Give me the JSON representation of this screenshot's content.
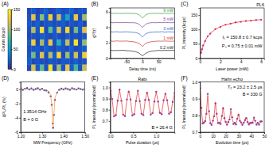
{
  "chart_data": [
    {
      "type": "heatmap",
      "title": "(A)",
      "cells": [
        [
          12,
          18,
          10,
          15,
          20,
          11,
          14,
          19,
          13,
          16,
          22,
          12,
          17,
          14
        ],
        [
          15,
          120,
          14,
          95,
          18,
          130,
          12,
          110,
          20,
          60,
          16,
          125,
          13,
          100
        ],
        [
          18,
          14,
          22,
          11,
          16,
          19,
          13,
          15,
          21,
          12,
          17,
          14,
          19,
          11
        ],
        [
          14,
          105,
          17,
          140,
          12,
          85,
          19,
          115,
          15,
          135,
          11,
          90,
          18,
          120
        ],
        [
          11,
          16,
          13,
          20,
          15,
          12,
          18,
          14,
          11,
          19,
          13,
          16,
          12,
          17
        ],
        [
          19,
          130,
          12,
          100,
          16,
          125,
          14,
          70,
          18,
          110,
          15,
          140,
          12,
          95
        ],
        [
          13,
          17,
          19,
          12,
          21,
          15,
          11,
          18,
          16,
          13,
          20,
          12,
          15,
          19
        ],
        [
          16,
          90,
          15,
          120,
          13,
          105,
          20,
          135,
          12,
          100,
          17,
          115,
          14,
          130
        ],
        [
          20,
          12,
          16,
          14,
          11,
          18,
          15,
          12,
          19,
          17,
          14,
          21,
          13,
          16
        ],
        [
          12,
          115,
          18,
          85,
          14,
          140,
          13,
          100,
          16,
          125,
          19,
          80,
          15,
          110
        ]
      ],
      "colorbar": {
        "label": "Counts (kcps)",
        "range": [
          0,
          150
        ],
        "ticks": [
          0,
          50,
          100,
          150
        ]
      }
    },
    {
      "type": "line",
      "title": "(B)",
      "xlabel": "Delay time (ns)",
      "ylabel": "g⁽²⁾(τ)",
      "x": [
        -100,
        -90,
        -80,
        -70,
        -60,
        -50,
        -40,
        -30,
        -20,
        -10,
        0,
        10,
        20,
        30,
        40,
        50,
        60,
        70,
        80,
        90,
        100
      ],
      "xlim": [
        -100,
        100
      ],
      "xticks": [
        -50,
        0,
        50
      ],
      "ylim": [
        0,
        6.5
      ],
      "yticks": [
        0,
        2,
        4,
        6
      ],
      "series": [
        {
          "name": "9 mW",
          "color": "#3a9a3a",
          "values": [
            5.81,
            5.79,
            5.82,
            5.78,
            5.8,
            5.81,
            5.79,
            5.8,
            5.76,
            5.62,
            5.2,
            5.6,
            5.77,
            5.79,
            5.81,
            5.8,
            5.78,
            5.82,
            5.79,
            5.81,
            5.8
          ]
        },
        {
          "name": "5 mW",
          "color": "#7a3fa0",
          "values": [
            4.61,
            4.58,
            4.62,
            4.59,
            4.6,
            4.62,
            4.58,
            4.59,
            4.55,
            4.38,
            3.98,
            4.4,
            4.54,
            4.6,
            4.58,
            4.61,
            4.59,
            4.62,
            4.6,
            4.58,
            4.61
          ]
        },
        {
          "name": "3 mW",
          "color": "#2a5fd0",
          "values": [
            3.41,
            3.39,
            3.42,
            3.38,
            3.4,
            3.41,
            3.39,
            3.36,
            3.31,
            3.15,
            2.75,
            3.16,
            3.32,
            3.37,
            3.4,
            3.39,
            3.42,
            3.38,
            3.41,
            3.4,
            3.39
          ]
        },
        {
          "name": "1 mW",
          "color": "#c83030",
          "values": [
            2.21,
            2.18,
            2.23,
            2.19,
            2.2,
            2.22,
            2.16,
            2.13,
            2.05,
            1.9,
            1.52,
            1.92,
            2.06,
            2.14,
            2.18,
            2.21,
            2.19,
            2.22,
            2.2,
            2.18,
            2.21
          ]
        },
        {
          "name": "0.2 mW",
          "color": "#222222",
          "values": [
            1.02,
            0.98,
            1.01,
            0.99,
            1.03,
            0.97,
            0.95,
            0.91,
            0.82,
            0.64,
            0.3,
            0.62,
            0.83,
            0.92,
            0.96,
            1.01,
            0.98,
            1.02,
            0.99,
            1.01,
            1.0
          ]
        }
      ]
    },
    {
      "type": "scatter",
      "title": "(C)",
      "xlabel": "Laser power (mW)",
      "ylabel": "PL Intensity (kcps)",
      "annotations": [
        "PL6",
        "Iₛ = 150.8 ± 0.7 kcps",
        "Pₛ = 0.75 ± 0.01 mW"
      ],
      "x": [
        0.1,
        0.2,
        0.3,
        0.5,
        0.75,
        1,
        1.5,
        2,
        2.5,
        3,
        3.5,
        4,
        4.5,
        5,
        5.5,
        6
      ],
      "xlim": [
        0,
        6.3
      ],
      "xticks": [
        0,
        2,
        4,
        6
      ],
      "ylim": [
        0,
        175
      ],
      "yticks": [
        0,
        50,
        100,
        150
      ],
      "series": [
        {
          "type": "scatter",
          "marker": "circle",
          "color": "#e0409a",
          "values": [
            18.5,
            30.9,
            44.0,
            59.5,
            76.2,
            85.4,
            101.3,
            109.0,
            116.8,
            120.1,
            124.9,
            126.5,
            129.8,
            130.6,
            133.2,
            133.6
          ]
        },
        {
          "type": "line",
          "line_style": "solid",
          "color": "#d62728",
          "values": [
            17.7,
            31.7,
            43.1,
            60.3,
            75.4,
            86.2,
            100.5,
            109.7,
            116.0,
            120.6,
            124.2,
            127.0,
            129.3,
            131.1,
            132.7,
            134.0
          ]
        }
      ]
    },
    {
      "type": "scatter",
      "title": "(D)",
      "xlabel": "MW Frequency (GHz)",
      "ylabel": "ΔPL/PL (%)",
      "annotations": [
        "1.3514 GHz",
        "B = 0 G"
      ],
      "x": [
        1.2,
        1.21,
        1.22,
        1.23,
        1.24,
        1.25,
        1.26,
        1.27,
        1.28,
        1.29,
        1.3,
        1.31,
        1.32,
        1.33,
        1.34,
        1.345,
        1.35,
        1.3514,
        1.355,
        1.36,
        1.37,
        1.38,
        1.39,
        1.4,
        1.41,
        1.42,
        1.43,
        1.44,
        1.45,
        1.46,
        1.47,
        1.48,
        1.49,
        1.5
      ],
      "xlim": [
        1.2,
        1.5
      ],
      "xticks": [
        {
          "value": 1.2,
          "label": "1.20"
        },
        {
          "value": 1.3,
          "label": "1.30"
        },
        {
          "value": 1.4,
          "label": "1.40"
        },
        {
          "value": 1.5,
          "label": "1.50"
        }
      ],
      "ylim": [
        -6,
        1
      ],
      "yticks": [
        -6,
        -4,
        -2,
        0
      ],
      "series": [
        {
          "type": "scatter",
          "marker": "circle",
          "color": "#3b4cc0",
          "values": [
            0.1,
            -0.1,
            0.05,
            0.15,
            -0.05,
            0.1,
            -0.1,
            0.0,
            0.12,
            -0.08,
            0.05,
            -0.15,
            -0.2,
            -0.45,
            -1.0,
            -2.2,
            -4.8,
            -5.4,
            -3.6,
            -1.5,
            -0.5,
            -0.1,
            0.08,
            -0.05,
            0.1,
            0.0,
            -0.1,
            0.12,
            0.02,
            -0.06,
            0.1,
            0.0,
            -0.08,
            0.05
          ]
        },
        {
          "type": "line",
          "line_style": "solid",
          "color": "#f28e2b",
          "values": [
            -0.01,
            -0.01,
            -0.01,
            -0.02,
            -0.02,
            -0.02,
            -0.02,
            -0.02,
            -0.03,
            -0.04,
            -0.05,
            -0.08,
            -0.13,
            -0.28,
            -0.86,
            -2.03,
            -4.96,
            -5.35,
            -3.52,
            -1.35,
            -0.36,
            -0.16,
            -0.09,
            -0.05,
            -0.04,
            -0.03,
            -0.02,
            -0.02,
            -0.02,
            -0.02,
            -0.01,
            -0.01,
            -0.01,
            -0.01
          ]
        }
      ]
    },
    {
      "type": "scatter",
      "title": "(E)",
      "xlabel": "Pulse duration (μs)",
      "ylabel": "PL Intensity (normalized)",
      "annotations": [
        "Rabi",
        "B = 26.4 G"
      ],
      "x": [
        0,
        0.04,
        0.08,
        0.12,
        0.16,
        0.2,
        0.24,
        0.28,
        0.32,
        0.36,
        0.4,
        0.44,
        0.48,
        0.52,
        0.56,
        0.6,
        0.64,
        0.68,
        0.72,
        0.76,
        0.8,
        0.84,
        0.88,
        0.92,
        0.96,
        1,
        1.04,
        1.08,
        1.12,
        1.16,
        1.2,
        1.24,
        1.28,
        1.32,
        1.36,
        1.4
      ],
      "xlim": [
        0,
        1.4
      ],
      "xticks": [
        {
          "value": 0,
          "label": "0.0"
        },
        0.5,
        {
          "value": 1,
          "label": "1.0"
        }
      ],
      "ylim": [
        0.6,
        1.05
      ],
      "yticks": [
        0.7,
        0.8,
        0.9,
        {
          "value": 1,
          "label": "1.0"
        }
      ],
      "series": [
        {
          "type": "scatter",
          "marker": "circle",
          "color": "#8e44ad",
          "values": [
            0.972,
            0.897,
            0.741,
            0.753,
            0.882,
            0.981,
            0.881,
            0.757,
            0.744,
            0.893,
            0.962,
            0.892,
            0.749,
            0.761,
            0.878,
            0.971,
            0.879,
            0.766,
            0.753,
            0.889,
            0.952,
            0.889,
            0.757,
            0.771,
            0.875,
            0.961,
            0.874,
            0.774,
            0.761,
            0.886,
            0.943,
            0.886,
            0.765,
            0.779,
            0.871,
            0.951
          ]
        },
        {
          "type": "line",
          "line_style": "solid",
          "color": "#e03030",
          "values": [
            0.98,
            0.89,
            0.746,
            0.747,
            0.889,
            0.975,
            0.888,
            0.75,
            0.751,
            0.887,
            0.97,
            0.886,
            0.755,
            0.755,
            0.885,
            0.965,
            0.885,
            0.759,
            0.76,
            0.883,
            0.96,
            0.883,
            0.763,
            0.764,
            0.882,
            0.955,
            0.881,
            0.767,
            0.768,
            0.88,
            0.95,
            0.88,
            0.772,
            0.772,
            0.878,
            0.945
          ]
        }
      ]
    },
    {
      "type": "scatter",
      "title": "(F)",
      "xlabel": "Evolution time (μs)",
      "ylabel": "PL Intensity (normalized)",
      "annotations": [
        "Hahn echo",
        "T₂ = 23.2 ± 2.5 μs",
        "B = 330 G"
      ],
      "x": [
        0,
        1,
        2,
        3,
        4,
        5,
        6,
        7,
        8,
        9,
        10,
        11,
        12,
        13,
        14,
        15,
        16,
        17,
        18,
        19,
        20,
        21,
        22,
        23,
        24,
        25,
        26,
        27,
        28,
        29,
        30,
        31,
        32,
        33,
        34,
        35,
        36,
        37,
        38,
        39,
        40,
        41,
        42,
        43,
        44,
        45,
        46,
        47,
        48
      ],
      "xlim": [
        0,
        50
      ],
      "xticks": [
        0,
        10,
        20,
        30,
        40,
        50
      ],
      "ylim": [
        0.7,
        1.0
      ],
      "yticks": [
        0.7,
        0.8,
        0.9,
        {
          "value": 1,
          "label": "1.0"
        }
      ],
      "series": [
        {
          "type": "scatter",
          "marker": "circle",
          "color": "#8e44ad",
          "values": [
            0.962,
            0.845,
            0.752,
            0.758,
            0.766,
            0.81,
            0.928,
            0.825,
            0.753,
            0.744,
            0.768,
            0.795,
            0.872,
            0.81,
            0.754,
            0.757,
            0.749,
            0.797,
            0.842,
            0.784,
            0.762,
            0.745,
            0.76,
            0.776,
            0.837,
            0.789,
            0.749,
            0.756,
            0.746,
            0.78,
            0.803,
            0.768,
            0.758,
            0.744,
            0.757,
            0.772,
            0.784,
            0.76,
            0.746,
            0.755,
            0.757,
            0.756,
            0.786,
            0.768,
            0.745,
            0.756,
            0.745,
            0.764,
            0.764
          ]
        },
        {
          "type": "line",
          "line_style": "solid",
          "color": "#e03030",
          "values": [
            0.97,
            0.838,
            0.76,
            0.75,
            0.76,
            0.818,
            0.92,
            0.818,
            0.76,
            0.75,
            0.76,
            0.802,
            0.88,
            0.802,
            0.76,
            0.75,
            0.755,
            0.79,
            0.85,
            0.79,
            0.755,
            0.75,
            0.755,
            0.782,
            0.83,
            0.782,
            0.755,
            0.75,
            0.752,
            0.774,
            0.81,
            0.774,
            0.752,
            0.75,
            0.752,
            0.766,
            0.79,
            0.766,
            0.752,
            0.75,
            0.751,
            0.762,
            0.78,
            0.762,
            0.751,
            0.75,
            0.751,
            0.758,
            0.77
          ]
        }
      ]
    }
  ]
}
